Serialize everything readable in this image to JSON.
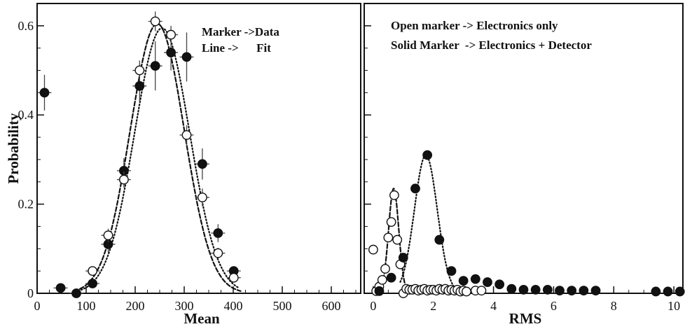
{
  "chart_data": [
    {
      "type": "scatter",
      "xlabel": "Mean",
      "ylabel": "Probability",
      "xlim": [
        0,
        660
      ],
      "ylim": [
        0,
        0.65
      ],
      "x_ticks": [
        0,
        100,
        200,
        300,
        400,
        500,
        600
      ],
      "x_tick_labels": [
        "0",
        "100",
        "200",
        "300",
        "400",
        "500",
        "600"
      ],
      "y_ticks": [
        0,
        0.2,
        0.4,
        0.6
      ],
      "y_tick_labels": [
        "0",
        "0.2",
        "0.4",
        "0.6"
      ],
      "annotations": [
        "Marker ->Data",
        "Line ->      Fit"
      ],
      "grid": false,
      "series": [
        {
          "marker": "solid",
          "points": [
            {
              "x": 15,
              "y": 0.45,
              "err": 0.04
            },
            {
              "x": 48,
              "y": 0.012,
              "err": 0.004
            },
            {
              "x": 80,
              "y": 0.0,
              "err": 0.003
            },
            {
              "x": 113,
              "y": 0.022,
              "err": 0.008
            },
            {
              "x": 145,
              "y": 0.11,
              "err": 0.02
            },
            {
              "x": 177,
              "y": 0.275,
              "err": 0.028
            },
            {
              "x": 209,
              "y": 0.465,
              "err": 0.035
            },
            {
              "x": 241,
              "y": 0.51,
              "err": 0.055
            },
            {
              "x": 273,
              "y": 0.54,
              "err": 0.04
            },
            {
              "x": 305,
              "y": 0.53,
              "err": 0.055
            },
            {
              "x": 337,
              "y": 0.29,
              "err": 0.035
            },
            {
              "x": 369,
              "y": 0.135,
              "err": 0.02
            },
            {
              "x": 401,
              "y": 0.05,
              "err": 0.01
            }
          ]
        },
        {
          "marker": "open",
          "points": [
            {
              "x": 113,
              "y": 0.05,
              "err": 0.01
            },
            {
              "x": 145,
              "y": 0.13,
              "err": 0.015
            },
            {
              "x": 177,
              "y": 0.255,
              "err": 0.018
            },
            {
              "x": 209,
              "y": 0.5,
              "err": 0.022
            },
            {
              "x": 241,
              "y": 0.61,
              "err": 0.022
            },
            {
              "x": 273,
              "y": 0.58,
              "err": 0.02
            },
            {
              "x": 305,
              "y": 0.355,
              "err": 0.022
            },
            {
              "x": 337,
              "y": 0.215,
              "err": 0.02
            },
            {
              "x": 369,
              "y": 0.09,
              "err": 0.012
            },
            {
              "x": 401,
              "y": 0.035,
              "err": 0.006
            }
          ]
        }
      ],
      "fits": [
        {
          "style": "dashed",
          "shape": "gaussian",
          "amplitude": 0.605,
          "mean": 245,
          "sigma": 55,
          "x_range": [
            75,
            415
          ]
        },
        {
          "style": "dotted",
          "shape": "gaussian",
          "amplitude": 0.595,
          "mean": 255,
          "sigma": 56,
          "x_range": [
            90,
            410
          ]
        }
      ]
    },
    {
      "type": "scatter",
      "xlabel": "RMS",
      "xlim": [
        -0.3,
        10.3
      ],
      "ylim": [
        0,
        0.65
      ],
      "x_ticks": [
        0,
        2,
        4,
        6,
        8,
        10
      ],
      "x_tick_labels": [
        "0",
        "2",
        "4",
        "6",
        "8",
        "10"
      ],
      "annotations": [
        "Open marker -> Electronics only",
        "Solid Marker  -> Electronics + Detector"
      ],
      "grid": false,
      "series": [
        {
          "marker": "open",
          "points": [
            {
              "x": 0.0,
              "y": 0.098
            },
            {
              "x": 0.1,
              "y": 0.005
            },
            {
              "x": 0.2,
              "y": 0.015
            },
            {
              "x": 0.3,
              "y": 0.03
            },
            {
              "x": 0.4,
              "y": 0.055
            },
            {
              "x": 0.5,
              "y": 0.125
            },
            {
              "x": 0.6,
              "y": 0.16
            },
            {
              "x": 0.7,
              "y": 0.22
            },
            {
              "x": 0.8,
              "y": 0.12
            },
            {
              "x": 0.9,
              "y": 0.065
            },
            {
              "x": 1.0,
              "y": 0.0
            },
            {
              "x": 1.1,
              "y": 0.01
            },
            {
              "x": 1.2,
              "y": 0.008
            },
            {
              "x": 1.3,
              "y": 0.008
            },
            {
              "x": 1.4,
              "y": 0.01
            },
            {
              "x": 1.5,
              "y": 0.006
            },
            {
              "x": 1.6,
              "y": 0.008
            },
            {
              "x": 1.7,
              "y": 0.01
            },
            {
              "x": 1.8,
              "y": 0.006
            },
            {
              "x": 1.9,
              "y": 0.008
            },
            {
              "x": 2.0,
              "y": 0.008
            },
            {
              "x": 2.1,
              "y": 0.006
            },
            {
              "x": 2.2,
              "y": 0.01
            },
            {
              "x": 2.3,
              "y": 0.008
            },
            {
              "x": 2.4,
              "y": 0.01
            },
            {
              "x": 2.5,
              "y": 0.006
            },
            {
              "x": 2.6,
              "y": 0.008
            },
            {
              "x": 2.7,
              "y": 0.006
            },
            {
              "x": 2.8,
              "y": 0.008
            },
            {
              "x": 2.9,
              "y": 0.004
            },
            {
              "x": 3.0,
              "y": 0.006
            },
            {
              "x": 3.1,
              "y": 0.004
            },
            {
              "x": 3.4,
              "y": 0.006
            },
            {
              "x": 3.6,
              "y": 0.006
            }
          ]
        },
        {
          "marker": "solid",
          "points": [
            {
              "x": 0.2,
              "y": 0.005
            },
            {
              "x": 0.6,
              "y": 0.035
            },
            {
              "x": 1.0,
              "y": 0.08
            },
            {
              "x": 1.4,
              "y": 0.235
            },
            {
              "x": 1.8,
              "y": 0.31
            },
            {
              "x": 2.2,
              "y": 0.12
            },
            {
              "x": 2.6,
              "y": 0.05
            },
            {
              "x": 3.0,
              "y": 0.028
            },
            {
              "x": 3.4,
              "y": 0.032
            },
            {
              "x": 3.8,
              "y": 0.025
            },
            {
              "x": 4.2,
              "y": 0.02
            },
            {
              "x": 4.6,
              "y": 0.01
            },
            {
              "x": 5.0,
              "y": 0.008
            },
            {
              "x": 5.4,
              "y": 0.008
            },
            {
              "x": 5.8,
              "y": 0.008
            },
            {
              "x": 6.2,
              "y": 0.006
            },
            {
              "x": 6.6,
              "y": 0.006
            },
            {
              "x": 7.0,
              "y": 0.006
            },
            {
              "x": 7.4,
              "y": 0.006
            },
            {
              "x": 9.4,
              "y": 0.004
            },
            {
              "x": 9.8,
              "y": 0.004
            },
            {
              "x": 10.2,
              "y": 0.004
            }
          ]
        }
      ],
      "fits": [
        {
          "style": "dashed",
          "shape": "gaussian",
          "amplitude": 0.235,
          "mean": 0.68,
          "sigma": 0.17,
          "x_range": [
            0.2,
            1.1
          ]
        },
        {
          "style": "dotted",
          "shape": "gaussian",
          "amplitude": 0.31,
          "mean": 1.75,
          "sigma": 0.38,
          "x_range": [
            0.9,
            2.8
          ]
        }
      ]
    }
  ]
}
